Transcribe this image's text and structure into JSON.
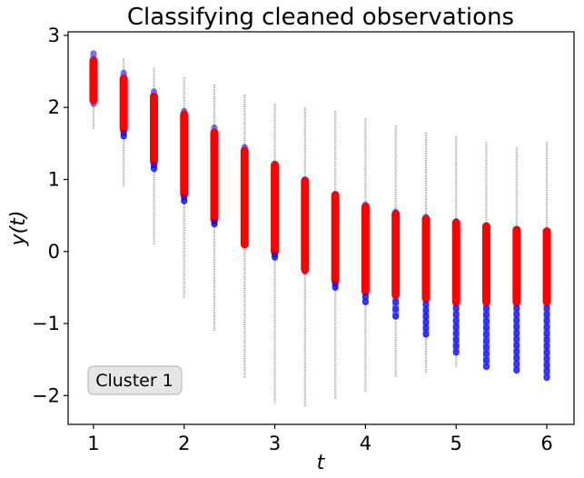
{
  "chart_data": {
    "type": "scatter",
    "title": "Classifying cleaned observations",
    "xlabel": "t",
    "ylabel": "y(t)",
    "xlim": [
      0.72,
      6.3
    ],
    "ylim": [
      -2.4,
      3.05
    ],
    "xticks": [
      1,
      2,
      3,
      4,
      5,
      6
    ],
    "yticks": [
      -2,
      -1,
      0,
      1,
      2,
      3
    ],
    "xtick_labels": [
      "1",
      "2",
      "3",
      "4",
      "5",
      "6"
    ],
    "ytick_labels": [
      "−2",
      "−1",
      "0",
      "1",
      "2",
      "3"
    ],
    "grid": false,
    "legend": "none",
    "annotation": "Cluster 1",
    "annotation_position": "bottom-left",
    "colors": {
      "all_observations": "#808080",
      "classified": "#0000ff",
      "cleaned": "#ff0000"
    },
    "x": [
      1.0,
      1.333,
      1.667,
      2.0,
      2.333,
      2.667,
      3.0,
      3.333,
      3.667,
      4.0,
      4.333,
      4.667,
      5.0,
      5.333,
      5.667,
      6.0
    ],
    "series": [
      {
        "role": "all observations",
        "color": "#808080",
        "min": [
          1.7,
          0.9,
          0.1,
          -0.65,
          -1.1,
          -1.75,
          -2.1,
          -2.15,
          -2.05,
          -1.95,
          -1.75,
          -1.7,
          -1.6,
          -1.6,
          -1.55,
          -1.65
        ],
        "max": [
          2.72,
          2.68,
          2.55,
          2.42,
          2.32,
          2.18,
          2.05,
          2.0,
          1.95,
          1.85,
          1.75,
          1.65,
          1.6,
          1.52,
          1.45,
          1.52
        ]
      },
      {
        "role": "classified",
        "color": "#0000ff",
        "min": [
          2.05,
          1.6,
          1.15,
          0.7,
          0.38,
          0.12,
          -0.08,
          -0.28,
          -0.5,
          -0.7,
          -0.9,
          -1.15,
          -1.4,
          -1.6,
          -1.65,
          -1.75
        ],
        "max": [
          2.75,
          2.48,
          2.22,
          1.95,
          1.72,
          1.45,
          1.22,
          1.0,
          0.8,
          0.65,
          0.55,
          0.48,
          0.42,
          0.35,
          0.3,
          0.28
        ]
      },
      {
        "role": "cleaned",
        "color": "#ff0000",
        "min": [
          2.1,
          1.7,
          1.25,
          0.8,
          0.45,
          0.1,
          0.0,
          -0.25,
          -0.4,
          -0.55,
          -0.6,
          -0.65,
          -0.7,
          -0.7,
          -0.7,
          -0.7
        ],
        "max": [
          2.65,
          2.4,
          2.15,
          1.9,
          1.65,
          1.4,
          1.2,
          0.98,
          0.78,
          0.62,
          0.52,
          0.45,
          0.4,
          0.35,
          0.3,
          0.28
        ]
      }
    ]
  }
}
